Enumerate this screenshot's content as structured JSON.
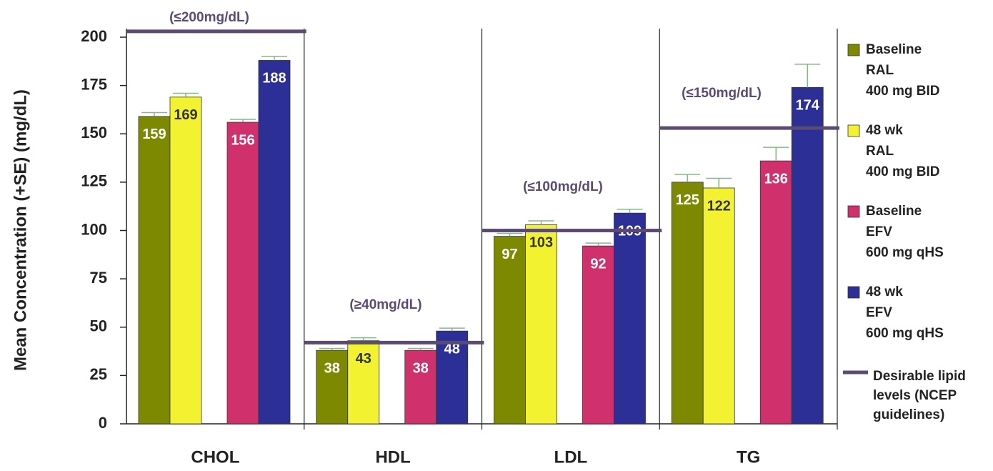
{
  "chart_data": {
    "type": "bar",
    "y_label": "Mean Concentration (+SE) (mg/dL)",
    "categories": [
      "CHOL",
      "HDL",
      "LDL",
      "TG"
    ],
    "ylim": [
      0,
      200
    ],
    "yticks": [
      0,
      25,
      50,
      75,
      100,
      125,
      150,
      175,
      200
    ],
    "series": [
      {
        "name": "Baseline\nRAL\n400 mg BID",
        "color": "#7d8a00",
        "label_color": "#ffffff",
        "values": [
          159,
          38,
          97,
          125
        ],
        "errors": [
          2,
          1,
          1.5,
          4
        ]
      },
      {
        "name": "48 wk\nRAL\n400 mg BID",
        "color": "#f2f230",
        "label_color": "#333333",
        "values": [
          169,
          43,
          103,
          122
        ],
        "errors": [
          2,
          1.5,
          2,
          5
        ]
      },
      {
        "name": "Baseline\nEFV\n600 mg qHS",
        "color": "#d0306c",
        "label_color": "#ffffff",
        "values": [
          156,
          38,
          92,
          136
        ],
        "errors": [
          1.5,
          1,
          1.5,
          7
        ]
      },
      {
        "name": "48 wk\nEFV\n600 mg qHS",
        "color": "#2b2f96",
        "label_color": "#ffffff",
        "values": [
          188,
          48,
          109,
          174
        ],
        "errors": [
          2,
          1.5,
          2,
          12
        ]
      }
    ],
    "desirable": {
      "name": "Desirable lipid\nlevels (NCEP\nguidelines)",
      "color": "#5b4a72",
      "values": [
        203,
        42,
        100,
        153
      ],
      "labels": [
        "(≤200mg/dL)",
        "(≥40mg/dL)",
        "(≤100mg/dL)",
        "(≤150mg/dL)"
      ]
    }
  }
}
